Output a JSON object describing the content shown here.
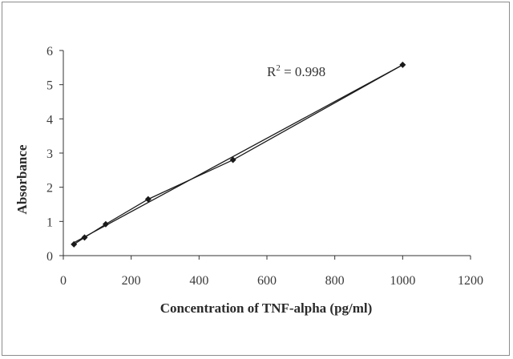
{
  "chart_data": {
    "type": "scatter",
    "title": "",
    "xlabel": "Concentration of TNF-alpha (pg/ml)",
    "ylabel": "Absorbance",
    "xlim": [
      0,
      1200
    ],
    "ylim": [
      0,
      6
    ],
    "xticks": [
      0,
      200,
      400,
      600,
      800,
      1000,
      1200
    ],
    "yticks": [
      0,
      1,
      2,
      3,
      4,
      5,
      6
    ],
    "grid": false,
    "legend": "none",
    "series": [
      {
        "marker": "diamond",
        "connected": true,
        "x": [
          31.25,
          62.5,
          125,
          250,
          500,
          1000
        ],
        "y": [
          0.33,
          0.53,
          0.92,
          1.65,
          2.8,
          5.58
        ]
      }
    ],
    "trendline": {
      "type": "linear",
      "x": [
        31.25,
        1000
      ],
      "y": [
        0.38,
        5.58
      ]
    },
    "annotation": {
      "base": "R",
      "superscript": "2",
      "text": " = 0.998"
    },
    "colors": {
      "series": "#1a1a1a",
      "axis": "#333333"
    }
  }
}
